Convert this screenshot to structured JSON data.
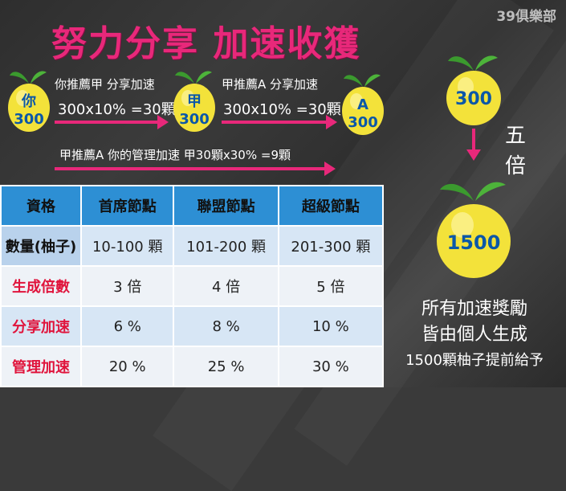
{
  "brand": "39俱樂部",
  "title": "努力分享 加速收獲",
  "colors": {
    "accent": "#e8287a",
    "table_header": "#2d8fd4",
    "fruit": "#f3e23a",
    "leaf": "#3b9a2e",
    "text_blue": "#0b57a8"
  },
  "flow": {
    "fruit_you": {
      "top": "你",
      "bottom": "300"
    },
    "fruit_jia": {
      "top": "甲",
      "bottom": "300"
    },
    "fruit_a": {
      "top": "A",
      "bottom": "300"
    },
    "step1_label": "你推薦甲 分享加速",
    "step1_calc": "300x10% =30顆",
    "step2_label": "甲推薦A 分享加速",
    "step2_calc": "300x10% =30顆",
    "step3_label": "甲推薦A 你的管理加速 甲30顆x30% =9顆"
  },
  "right": {
    "fruit_small": "300",
    "multiplier": [
      "五",
      "倍"
    ],
    "fruit_big": "1500",
    "note_line1": "所有加速獎勵",
    "note_line2": "皆由個人生成",
    "note_line3": "1500顆柚子提前給予"
  },
  "table": {
    "headers": [
      "資格",
      "首席節點",
      "聯盟節點",
      "超級節點"
    ],
    "rows": [
      {
        "label": "數量(柚子)",
        "values": [
          "10-100 顆",
          "101-200 顆",
          "201-300 顆"
        ]
      },
      {
        "label": "生成倍數",
        "values": [
          "3 倍",
          "4 倍",
          "5 倍"
        ]
      },
      {
        "label": "分享加速",
        "values": [
          "6 %",
          "8 %",
          "10 %"
        ]
      },
      {
        "label": "管理加速",
        "values": [
          "20 %",
          "25 %",
          "30 %"
        ]
      }
    ]
  }
}
